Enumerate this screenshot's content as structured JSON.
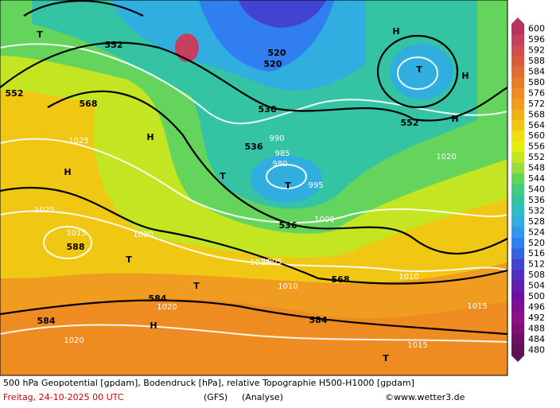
{
  "map": {
    "footer": {
      "line1": "500 hPa Geopotential [gpdam], Bodendruck [hPa], relative Topographie H500-H1000 [gpdam]",
      "date": "Freitag, 24-10-2025  00 UTC",
      "model": "(GFS)",
      "run": "(Analyse)",
      "credit": "©www.wetter3.de"
    },
    "colorbar": {
      "labels": [
        "600",
        "596",
        "592",
        "588",
        "584",
        "580",
        "576",
        "572",
        "568",
        "564",
        "560",
        "556",
        "552",
        "548",
        "544",
        "540",
        "536",
        "532",
        "528",
        "524",
        "520",
        "516",
        "512",
        "508",
        "504",
        "500",
        "496",
        "492",
        "488",
        "484",
        "480"
      ],
      "colors": [
        "#b8345c",
        "#c4405e",
        "#d04c50",
        "#d85c3c",
        "#e06c30",
        "#e87c28",
        "#ee8c22",
        "#f09c20",
        "#f0b018",
        "#f0c814",
        "#f0e010",
        "#e4ee10",
        "#c4e622",
        "#98dc40",
        "#64d45c",
        "#44cc80",
        "#34c4a4",
        "#30bcc4",
        "#30aee0",
        "#3096f0",
        "#307ef0",
        "#3462e0",
        "#4044d0",
        "#5030c0",
        "#6020b0",
        "#7010a0",
        "#801090",
        "#8c1088",
        "#801074",
        "#701064",
        "#601054"
      ]
    },
    "labels": [
      "552",
      "552",
      "568",
      "536",
      "536",
      "536",
      "520",
      "520",
      "552",
      "568",
      "584",
      "584",
      "584",
      "588",
      "T",
      "T",
      "T",
      "T",
      "T",
      "T",
      "T",
      "H",
      "H",
      "H",
      "H",
      "H",
      "H",
      "1015",
      "1020",
      "1025",
      "1020",
      "1015",
      "1000",
      "995",
      "990",
      "980",
      "985",
      "1010",
      "1005",
      "1020",
      "1025",
      "1015",
      "1010",
      "1015",
      "1020"
    ]
  }
}
